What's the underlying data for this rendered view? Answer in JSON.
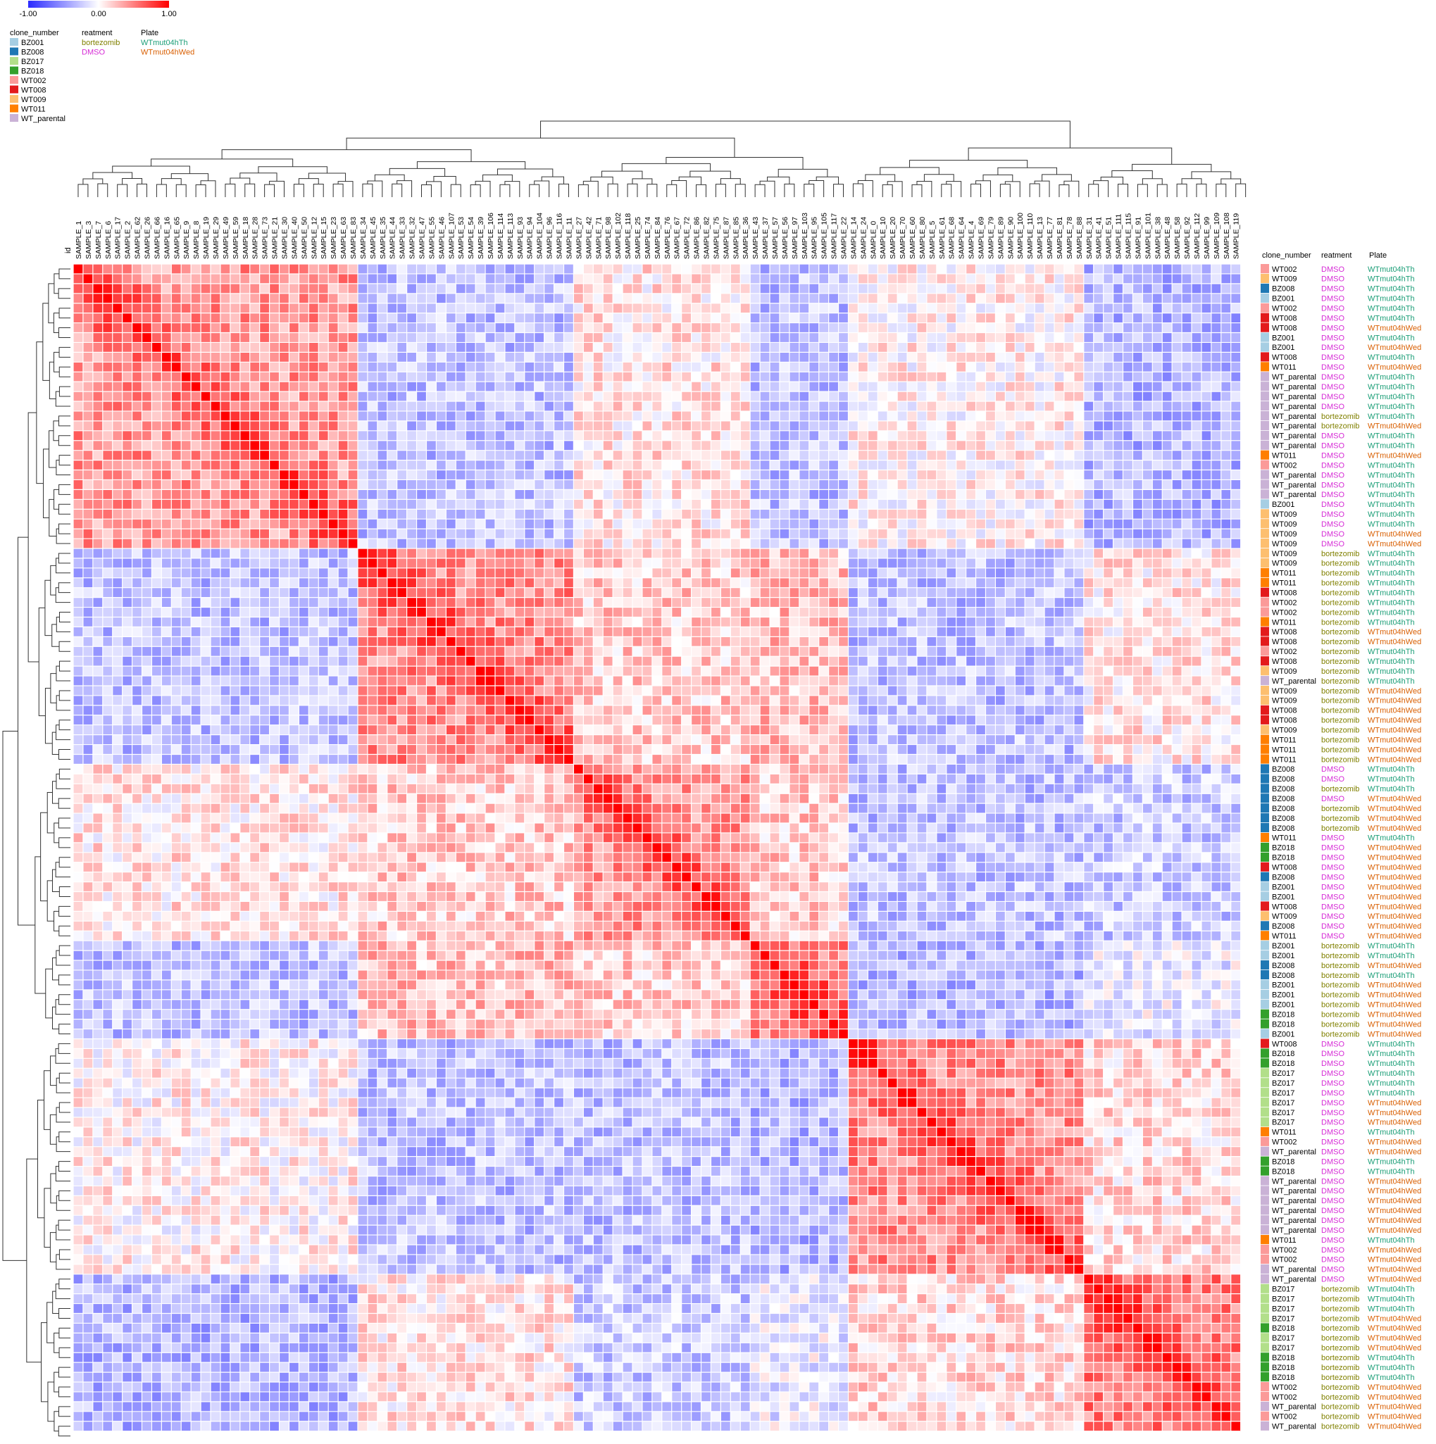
{
  "chart_data": {
    "type": "heatmap",
    "title": "",
    "colorscale": {
      "min": -1.0,
      "mid": 0.0,
      "max": 1.0,
      "tick_labels": [
        "-1.00",
        "0.00",
        "1.00"
      ],
      "colors": [
        "#2b2bff",
        "#ffffff",
        "#ff0000"
      ]
    },
    "id_label": "id",
    "columns": [
      "SAMPLE_1",
      "SAMPLE_3",
      "SAMPLE_7",
      "SAMPLE_6",
      "SAMPLE_17",
      "SAMPLE_2",
      "SAMPLE_62",
      "SAMPLE_26",
      "SAMPLE_66",
      "SAMPLE_16",
      "SAMPLE_65",
      "SAMPLE_9",
      "SAMPLE_8",
      "SAMPLE_19",
      "SAMPLE_29",
      "SAMPLE_49",
      "SAMPLE_59",
      "SAMPLE_18",
      "SAMPLE_28",
      "SAMPLE_73",
      "SAMPLE_21",
      "SAMPLE_30",
      "SAMPLE_40",
      "SAMPLE_50",
      "SAMPLE_12",
      "SAMPLE_15",
      "SAMPLE_23",
      "SAMPLE_63",
      "SAMPLE_83",
      "SAMPLE_34",
      "SAMPLE_45",
      "SAMPLE_35",
      "SAMPLE_44",
      "SAMPLE_33",
      "SAMPLE_32",
      "SAMPLE_47",
      "SAMPLE_55",
      "SAMPLE_46",
      "SAMPLE_107",
      "SAMPLE_53",
      "SAMPLE_54",
      "SAMPLE_39",
      "SAMPLE_106",
      "SAMPLE_114",
      "SAMPLE_113",
      "SAMPLE_93",
      "SAMPLE_94",
      "SAMPLE_104",
      "SAMPLE_96",
      "SAMPLE_116",
      "SAMPLE_11",
      "SAMPLE_27",
      "SAMPLE_42",
      "SAMPLE_71",
      "SAMPLE_98",
      "SAMPLE_102",
      "SAMPLE_118",
      "SAMPLE_25",
      "SAMPLE_74",
      "SAMPLE_84",
      "SAMPLE_76",
      "SAMPLE_67",
      "SAMPLE_72",
      "SAMPLE_86",
      "SAMPLE_82",
      "SAMPLE_75",
      "SAMPLE_87",
      "SAMPLE_85",
      "SAMPLE_36",
      "SAMPLE_43",
      "SAMPLE_37",
      "SAMPLE_57",
      "SAMPLE_56",
      "SAMPLE_97",
      "SAMPLE_103",
      "SAMPLE_95",
      "SAMPLE_105",
      "SAMPLE_117",
      "SAMPLE_22",
      "SAMPLE_14",
      "SAMPLE_24",
      "SAMPLE_0",
      "SAMPLE_10",
      "SAMPLE_20",
      "SAMPLE_70",
      "SAMPLE_60",
      "SAMPLE_80",
      "SAMPLE_5",
      "SAMPLE_61",
      "SAMPLE_68",
      "SAMPLE_64",
      "SAMPLE_4",
      "SAMPLE_69",
      "SAMPLE_79",
      "SAMPLE_89",
      "SAMPLE_90",
      "SAMPLE_100",
      "SAMPLE_110",
      "SAMPLE_13",
      "SAMPLE_77",
      "SAMPLE_81",
      "SAMPLE_78",
      "SAMPLE_88",
      "SAMPLE_31",
      "SAMPLE_41",
      "SAMPLE_51",
      "SAMPLE_111",
      "SAMPLE_115",
      "SAMPLE_91",
      "SAMPLE_101",
      "SAMPLE_38",
      "SAMPLE_48",
      "SAMPLE_58",
      "SAMPLE_92",
      "SAMPLE_112",
      "SAMPLE_99",
      "SAMPLE_109",
      "SAMPLE_108",
      "SAMPLE_119"
    ],
    "annotation_headers": [
      "clone_number",
      "reatment",
      "Plate"
    ],
    "rows": [
      {
        "clone": "WT002",
        "treatment": "DMSO",
        "plate": "WTmut04hTh"
      },
      {
        "clone": "WT009",
        "treatment": "DMSO",
        "plate": "WTmut04hTh"
      },
      {
        "clone": "BZ008",
        "treatment": "DMSO",
        "plate": "WTmut04hTh"
      },
      {
        "clone": "BZ001",
        "treatment": "DMSO",
        "plate": "WTmut04hTh"
      },
      {
        "clone": "WT002",
        "treatment": "DMSO",
        "plate": "WTmut04hTh"
      },
      {
        "clone": "WT008",
        "treatment": "DMSO",
        "plate": "WTmut04hTh"
      },
      {
        "clone": "WT008",
        "treatment": "DMSO",
        "plate": "WTmut04hWed"
      },
      {
        "clone": "BZ001",
        "treatment": "DMSO",
        "plate": "WTmut04hTh"
      },
      {
        "clone": "BZ001",
        "treatment": "DMSO",
        "plate": "WTmut04hWed"
      },
      {
        "clone": "WT008",
        "treatment": "DMSO",
        "plate": "WTmut04hTh"
      },
      {
        "clone": "WT011",
        "treatment": "DMSO",
        "plate": "WTmut04hWed"
      },
      {
        "clone": "WT_parental",
        "treatment": "DMSO",
        "plate": "WTmut04hTh"
      },
      {
        "clone": "WT_parental",
        "treatment": "DMSO",
        "plate": "WTmut04hTh"
      },
      {
        "clone": "WT_parental",
        "treatment": "DMSO",
        "plate": "WTmut04hTh"
      },
      {
        "clone": "WT_parental",
        "treatment": "DMSO",
        "plate": "WTmut04hTh"
      },
      {
        "clone": "WT_parental",
        "treatment": "bortezomib",
        "plate": "WTmut04hTh"
      },
      {
        "clone": "WT_parental",
        "treatment": "bortezomib",
        "plate": "WTmut04hWed"
      },
      {
        "clone": "WT_parental",
        "treatment": "DMSO",
        "plate": "WTmut04hTh"
      },
      {
        "clone": "WT_parental",
        "treatment": "DMSO",
        "plate": "WTmut04hTh"
      },
      {
        "clone": "WT011",
        "treatment": "DMSO",
        "plate": "WTmut04hWed"
      },
      {
        "clone": "WT002",
        "treatment": "DMSO",
        "plate": "WTmut04hTh"
      },
      {
        "clone": "WT_parental",
        "treatment": "DMSO",
        "plate": "WTmut04hTh"
      },
      {
        "clone": "WT_parental",
        "treatment": "DMSO",
        "plate": "WTmut04hTh"
      },
      {
        "clone": "WT_parental",
        "treatment": "DMSO",
        "plate": "WTmut04hTh"
      },
      {
        "clone": "BZ001",
        "treatment": "DMSO",
        "plate": "WTmut04hTh"
      },
      {
        "clone": "WT009",
        "treatment": "DMSO",
        "plate": "WTmut04hTh"
      },
      {
        "clone": "WT009",
        "treatment": "DMSO",
        "plate": "WTmut04hTh"
      },
      {
        "clone": "WT009",
        "treatment": "DMSO",
        "plate": "WTmut04hWed"
      },
      {
        "clone": "WT009",
        "treatment": "DMSO",
        "plate": "WTmut04hWed"
      },
      {
        "clone": "WT009",
        "treatment": "bortezomib",
        "plate": "WTmut04hTh"
      },
      {
        "clone": "WT009",
        "treatment": "bortezomib",
        "plate": "WTmut04hTh"
      },
      {
        "clone": "WT011",
        "treatment": "bortezomib",
        "plate": "WTmut04hTh"
      },
      {
        "clone": "WT011",
        "treatment": "bortezomib",
        "plate": "WTmut04hTh"
      },
      {
        "clone": "WT008",
        "treatment": "bortezomib",
        "plate": "WTmut04hTh"
      },
      {
        "clone": "WT002",
        "treatment": "bortezomib",
        "plate": "WTmut04hTh"
      },
      {
        "clone": "WT002",
        "treatment": "bortezomib",
        "plate": "WTmut04hTh"
      },
      {
        "clone": "WT011",
        "treatment": "bortezomib",
        "plate": "WTmut04hTh"
      },
      {
        "clone": "WT008",
        "treatment": "bortezomib",
        "plate": "WTmut04hWed"
      },
      {
        "clone": "WT008",
        "treatment": "bortezomib",
        "plate": "WTmut04hWed"
      },
      {
        "clone": "WT002",
        "treatment": "bortezomib",
        "plate": "WTmut04hTh"
      },
      {
        "clone": "WT008",
        "treatment": "bortezomib",
        "plate": "WTmut04hTh"
      },
      {
        "clone": "WT009",
        "treatment": "bortezomib",
        "plate": "WTmut04hTh"
      },
      {
        "clone": "WT_parental",
        "treatment": "bortezomib",
        "plate": "WTmut04hTh"
      },
      {
        "clone": "WT009",
        "treatment": "bortezomib",
        "plate": "WTmut04hWed"
      },
      {
        "clone": "WT009",
        "treatment": "bortezomib",
        "plate": "WTmut04hWed"
      },
      {
        "clone": "WT008",
        "treatment": "bortezomib",
        "plate": "WTmut04hWed"
      },
      {
        "clone": "WT008",
        "treatment": "bortezomib",
        "plate": "WTmut04hWed"
      },
      {
        "clone": "WT009",
        "treatment": "bortezomib",
        "plate": "WTmut04hWed"
      },
      {
        "clone": "WT011",
        "treatment": "bortezomib",
        "plate": "WTmut04hWed"
      },
      {
        "clone": "WT011",
        "treatment": "bortezomib",
        "plate": "WTmut04hWed"
      },
      {
        "clone": "WT011",
        "treatment": "bortezomib",
        "plate": "WTmut04hWed"
      },
      {
        "clone": "BZ008",
        "treatment": "DMSO",
        "plate": "WTmut04hTh"
      },
      {
        "clone": "BZ008",
        "treatment": "DMSO",
        "plate": "WTmut04hTh"
      },
      {
        "clone": "BZ008",
        "treatment": "bortezomib",
        "plate": "WTmut04hTh"
      },
      {
        "clone": "BZ008",
        "treatment": "DMSO",
        "plate": "WTmut04hWed"
      },
      {
        "clone": "BZ008",
        "treatment": "bortezomib",
        "plate": "WTmut04hWed"
      },
      {
        "clone": "BZ008",
        "treatment": "bortezomib",
        "plate": "WTmut04hWed"
      },
      {
        "clone": "BZ008",
        "treatment": "bortezomib",
        "plate": "WTmut04hWed"
      },
      {
        "clone": "WT011",
        "treatment": "DMSO",
        "plate": "WTmut04hTh"
      },
      {
        "clone": "BZ018",
        "treatment": "DMSO",
        "plate": "WTmut04hWed"
      },
      {
        "clone": "BZ018",
        "treatment": "DMSO",
        "plate": "WTmut04hWed"
      },
      {
        "clone": "WT008",
        "treatment": "DMSO",
        "plate": "WTmut04hWed"
      },
      {
        "clone": "BZ008",
        "treatment": "DMSO",
        "plate": "WTmut04hWed"
      },
      {
        "clone": "BZ001",
        "treatment": "DMSO",
        "plate": "WTmut04hWed"
      },
      {
        "clone": "BZ001",
        "treatment": "DMSO",
        "plate": "WTmut04hWed"
      },
      {
        "clone": "WT008",
        "treatment": "DMSO",
        "plate": "WTmut04hWed"
      },
      {
        "clone": "WT009",
        "treatment": "DMSO",
        "plate": "WTmut04hWed"
      },
      {
        "clone": "BZ008",
        "treatment": "DMSO",
        "plate": "WTmut04hWed"
      },
      {
        "clone": "WT011",
        "treatment": "DMSO",
        "plate": "WTmut04hWed"
      },
      {
        "clone": "BZ001",
        "treatment": "bortezomib",
        "plate": "WTmut04hTh"
      },
      {
        "clone": "BZ001",
        "treatment": "bortezomib",
        "plate": "WTmut04hTh"
      },
      {
        "clone": "BZ008",
        "treatment": "bortezomib",
        "plate": "WTmut04hWed"
      },
      {
        "clone": "BZ008",
        "treatment": "bortezomib",
        "plate": "WTmut04hTh"
      },
      {
        "clone": "BZ001",
        "treatment": "bortezomib",
        "plate": "WTmut04hWed"
      },
      {
        "clone": "BZ001",
        "treatment": "bortezomib",
        "plate": "WTmut04hWed"
      },
      {
        "clone": "BZ001",
        "treatment": "bortezomib",
        "plate": "WTmut04hWed"
      },
      {
        "clone": "BZ018",
        "treatment": "bortezomib",
        "plate": "WTmut04hWed"
      },
      {
        "clone": "BZ018",
        "treatment": "bortezomib",
        "plate": "WTmut04hWed"
      },
      {
        "clone": "BZ001",
        "treatment": "bortezomib",
        "plate": "WTmut04hWed"
      },
      {
        "clone": "WT008",
        "treatment": "DMSO",
        "plate": "WTmut04hTh"
      },
      {
        "clone": "BZ018",
        "treatment": "DMSO",
        "plate": "WTmut04hTh"
      },
      {
        "clone": "BZ018",
        "treatment": "DMSO",
        "plate": "WTmut04hTh"
      },
      {
        "clone": "BZ017",
        "treatment": "DMSO",
        "plate": "WTmut04hTh"
      },
      {
        "clone": "BZ017",
        "treatment": "DMSO",
        "plate": "WTmut04hTh"
      },
      {
        "clone": "BZ017",
        "treatment": "DMSO",
        "plate": "WTmut04hTh"
      },
      {
        "clone": "BZ017",
        "treatment": "DMSO",
        "plate": "WTmut04hWed"
      },
      {
        "clone": "BZ017",
        "treatment": "DMSO",
        "plate": "WTmut04hWed"
      },
      {
        "clone": "BZ017",
        "treatment": "DMSO",
        "plate": "WTmut04hWed"
      },
      {
        "clone": "WT011",
        "treatment": "DMSO",
        "plate": "WTmut04hTh"
      },
      {
        "clone": "WT002",
        "treatment": "DMSO",
        "plate": "WTmut04hWed"
      },
      {
        "clone": "WT_parental",
        "treatment": "DMSO",
        "plate": "WTmut04hWed"
      },
      {
        "clone": "BZ018",
        "treatment": "DMSO",
        "plate": "WTmut04hTh"
      },
      {
        "clone": "BZ018",
        "treatment": "DMSO",
        "plate": "WTmut04hTh"
      },
      {
        "clone": "WT_parental",
        "treatment": "DMSO",
        "plate": "WTmut04hWed"
      },
      {
        "clone": "WT_parental",
        "treatment": "DMSO",
        "plate": "WTmut04hWed"
      },
      {
        "clone": "WT_parental",
        "treatment": "DMSO",
        "plate": "WTmut04hWed"
      },
      {
        "clone": "WT_parental",
        "treatment": "DMSO",
        "plate": "WTmut04hWed"
      },
      {
        "clone": "WT_parental",
        "treatment": "DMSO",
        "plate": "WTmut04hWed"
      },
      {
        "clone": "WT_parental",
        "treatment": "DMSO",
        "plate": "WTmut04hWed"
      },
      {
        "clone": "WT011",
        "treatment": "DMSO",
        "plate": "WTmut04hTh"
      },
      {
        "clone": "WT002",
        "treatment": "DMSO",
        "plate": "WTmut04hWed"
      },
      {
        "clone": "WT002",
        "treatment": "DMSO",
        "plate": "WTmut04hWed"
      },
      {
        "clone": "WT_parental",
        "treatment": "DMSO",
        "plate": "WTmut04hWed"
      },
      {
        "clone": "WT_parental",
        "treatment": "DMSO",
        "plate": "WTmut04hWed"
      },
      {
        "clone": "BZ017",
        "treatment": "bortezomib",
        "plate": "WTmut04hTh"
      },
      {
        "clone": "BZ017",
        "treatment": "bortezomib",
        "plate": "WTmut04hTh"
      },
      {
        "clone": "BZ017",
        "treatment": "bortezomib",
        "plate": "WTmut04hTh"
      },
      {
        "clone": "BZ017",
        "treatment": "bortezomib",
        "plate": "WTmut04hWed"
      },
      {
        "clone": "BZ018",
        "treatment": "bortezomib",
        "plate": "WTmut04hWed"
      },
      {
        "clone": "BZ017",
        "treatment": "bortezomib",
        "plate": "WTmut04hWed"
      },
      {
        "clone": "BZ017",
        "treatment": "bortezomib",
        "plate": "WTmut04hWed"
      },
      {
        "clone": "BZ018",
        "treatment": "bortezomib",
        "plate": "WTmut04hTh"
      },
      {
        "clone": "BZ018",
        "treatment": "bortezomib",
        "plate": "WTmut04hTh"
      },
      {
        "clone": "BZ018",
        "treatment": "bortezomib",
        "plate": "WTmut04hTh"
      },
      {
        "clone": "WT002",
        "treatment": "bortezomib",
        "plate": "WTmut04hWed"
      },
      {
        "clone": "WT002",
        "treatment": "bortezomib",
        "plate": "WTmut04hWed"
      },
      {
        "clone": "WT_parental",
        "treatment": "bortezomib",
        "plate": "WTmut04hWed"
      },
      {
        "clone": "WT002",
        "treatment": "bortezomib",
        "plate": "WTmut04hWed"
      },
      {
        "clone": "WT_parental",
        "treatment": "bortezomib",
        "plate": "WTmut04hWed"
      }
    ],
    "row_clusters": [
      {
        "members": [
          0,
          28
        ],
        "approx_within": 0.4
      },
      {
        "members": [
          29,
          50
        ],
        "approx_within": 0.45
      },
      {
        "members": [
          51,
          68
        ],
        "approx_within": 0.4
      },
      {
        "members": [
          69,
          78
        ],
        "approx_within": 0.45
      },
      {
        "members": [
          79,
          102
        ],
        "approx_within": 0.45
      },
      {
        "members": [
          103,
          119
        ],
        "approx_within": 0.5
      }
    ],
    "grid": true,
    "legend": {
      "clone_number": [
        {
          "label": "BZ001",
          "color": "#a6cee3"
        },
        {
          "label": "BZ008",
          "color": "#1f78b4"
        },
        {
          "label": "BZ017",
          "color": "#b2df8a"
        },
        {
          "label": "BZ018",
          "color": "#33a02c"
        },
        {
          "label": "WT002",
          "color": "#fb9a99"
        },
        {
          "label": "WT008",
          "color": "#e31a1c"
        },
        {
          "label": "WT009",
          "color": "#fdbf6f"
        },
        {
          "label": "WT011",
          "color": "#ff7f00"
        },
        {
          "label": "WT_parental",
          "color": "#cab2d6"
        }
      ],
      "reatment": [
        {
          "label": "bortezomib",
          "color": "#808000"
        },
        {
          "label": "DMSO",
          "color": "#d62bd6"
        }
      ],
      "Plate": [
        {
          "label": "WTmut04hTh",
          "color": "#1b9e77"
        },
        {
          "label": "WTmut04hWed",
          "color": "#d95f02"
        }
      ]
    }
  }
}
